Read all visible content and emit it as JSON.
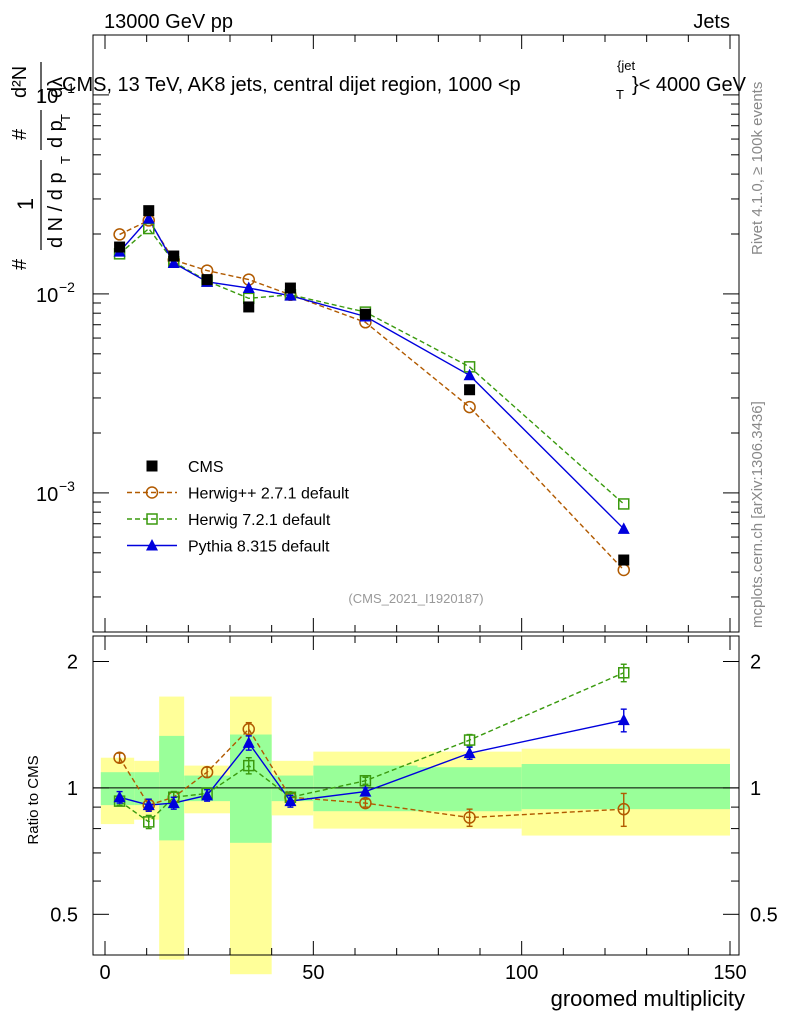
{
  "header": {
    "left": "13000 GeV pp",
    "right": "Jets"
  },
  "side_labels": {
    "rivet": "Rivet 4.1.0, ≥ 100k events",
    "mcplots": "mcplots.cern.ch [arXiv:1306.3436]"
  },
  "chart_data": [
    {
      "panel": "main",
      "type": "scatter",
      "title": "CMS, 13 TeV, AK8 jets, central dijet region, 1000 <p_T^{jet}< 4000 GeV",
      "title_text": "CMS, 13 TeV, AK8 jets, central dijet region, 1000 <p",
      "title_sup": "{jet",
      "title_sub": "T",
      "title_tail": "}< 4000 GeV",
      "ylabel_parts": {
        "num_top": "1",
        "den": "d N / d p",
        "den_sub": "T",
        "hash": "#",
        "frac2_num": "#",
        "frac2_den": "d p",
        "frac2_den_sub": "T",
        "frac3_num": "d²N",
        "frac3_den": "dλ"
      },
      "yscale": "log",
      "ylim": [
        0.0002,
        0.2
      ],
      "xlim": [
        -5,
        150
      ],
      "yticks": [
        {
          "label": "10",
          "exp": "−3",
          "value": 0.001
        },
        {
          "label": "10",
          "exp": "−2",
          "value": 0.01
        },
        {
          "label": "10",
          "exp": "−1",
          "value": 0.1
        }
      ],
      "watermark": "(CMS_2021_I1920187)",
      "legend_position": "lower-left",
      "series": [
        {
          "name": "CMS",
          "marker": "filled-square",
          "color": "#000000",
          "x": [
            3.5,
            10.5,
            16.5,
            24.5,
            34.5,
            44.5,
            62.5,
            87.5,
            124.5
          ],
          "y": [
            0.0172,
            0.0262,
            0.0155,
            0.0118,
            0.0086,
            0.0107,
            0.0079,
            0.0033,
            0.00046
          ]
        },
        {
          "name": "Herwig++ 2.7.1 default",
          "marker": "open-circle",
          "color": "#b15a00",
          "line": "dashed",
          "x": [
            3.5,
            10.5,
            16.5,
            24.5,
            34.5,
            44.5,
            62.5,
            87.5,
            124.5
          ],
          "y": [
            0.0199,
            0.0234,
            0.0148,
            0.0131,
            0.0118,
            0.0099,
            0.0072,
            0.0027,
            0.00041
          ]
        },
        {
          "name": "Herwig 7.2.1 default",
          "marker": "open-square",
          "color": "#3a9a0e",
          "line": "dashed",
          "x": [
            3.5,
            10.5,
            16.5,
            24.5,
            34.5,
            44.5,
            62.5,
            87.5,
            124.5
          ],
          "y": [
            0.0159,
            0.0213,
            0.0145,
            0.0116,
            0.0095,
            0.0099,
            0.0081,
            0.0043,
            0.00088
          ]
        },
        {
          "name": "Pythia 8.315 default",
          "marker": "filled-triangle",
          "color": "#0000dd",
          "line": "solid",
          "x": [
            3.5,
            10.5,
            16.5,
            24.5,
            34.5,
            44.5,
            62.5,
            87.5,
            124.5
          ],
          "y": [
            0.0163,
            0.0239,
            0.0143,
            0.0115,
            0.0107,
            0.0098,
            0.0077,
            0.0039,
            0.00066
          ]
        }
      ]
    },
    {
      "panel": "ratio",
      "type": "scatter",
      "ylabel": "Ratio to CMS",
      "xlabel": "groomed multiplicity",
      "ylim": [
        0.4,
        2.3
      ],
      "yscale": "log",
      "xlim": [
        -5,
        150
      ],
      "xticks": [
        "0",
        "50",
        "100",
        "150"
      ],
      "xtick_values": [
        0,
        50,
        100,
        150
      ],
      "yticks": [
        "0.5",
        "1",
        "2"
      ],
      "ytick_values": [
        0.5,
        1,
        2
      ],
      "bins": [
        {
          "lo": -1,
          "hi": 7,
          "band_outer": [
            0.82,
            1.18
          ],
          "band_inner": [
            0.91,
            1.09
          ]
        },
        {
          "lo": 7,
          "hi": 13,
          "band_outer": [
            0.84,
            1.16
          ],
          "band_inner": [
            0.91,
            1.09
          ]
        },
        {
          "lo": 13,
          "hi": 19,
          "band_outer": [
            0.39,
            1.65
          ],
          "band_inner": [
            0.75,
            1.33
          ]
        },
        {
          "lo": 19,
          "hi": 30,
          "band_outer": [
            0.87,
            1.13
          ],
          "band_inner": [
            0.93,
            1.07
          ]
        },
        {
          "lo": 30,
          "hi": 40,
          "band_outer": [
            0.36,
            1.65
          ],
          "band_inner": [
            0.74,
            1.34
          ]
        },
        {
          "lo": 40,
          "hi": 50,
          "band_outer": [
            0.86,
            1.16
          ],
          "band_inner": [
            0.93,
            1.07
          ]
        },
        {
          "lo": 50,
          "hi": 75,
          "band_outer": [
            0.8,
            1.22
          ],
          "band_inner": [
            0.88,
            1.13
          ]
        },
        {
          "lo": 75,
          "hi": 100,
          "band_outer": [
            0.8,
            1.22
          ],
          "band_inner": [
            0.88,
            1.12
          ]
        },
        {
          "lo": 100,
          "hi": 150,
          "band_outer": [
            0.77,
            1.24
          ],
          "band_inner": [
            0.89,
            1.14
          ]
        }
      ],
      "series": [
        {
          "name": "Herwig++ 2.7.1 default",
          "marker": "open-circle",
          "color": "#b15a00",
          "line": "dashed",
          "x": [
            3.5,
            10.5,
            16.5,
            24.5,
            34.5,
            44.5,
            62.5,
            87.5,
            124.5
          ],
          "y": [
            1.18,
            0.91,
            0.95,
            1.09,
            1.38,
            0.95,
            0.92,
            0.85,
            0.89
          ],
          "err": [
            0.03,
            0.03,
            0.03,
            0.03,
            0.05,
            0.02,
            0.02,
            0.04,
            0.08
          ]
        },
        {
          "name": "Herwig 7.2.1 default",
          "marker": "open-square",
          "color": "#3a9a0e",
          "line": "dashed",
          "x": [
            3.5,
            10.5,
            16.5,
            24.5,
            34.5,
            44.5,
            62.5,
            87.5,
            124.5
          ],
          "y": [
            0.93,
            0.83,
            0.95,
            0.97,
            1.13,
            0.95,
            1.04,
            1.3,
            1.88
          ],
          "err": [
            0.02,
            0.03,
            0.03,
            0.03,
            0.05,
            0.02,
            0.02,
            0.04,
            0.09
          ]
        },
        {
          "name": "Pythia 8.315 default",
          "marker": "filled-triangle",
          "color": "#0000dd",
          "line": "solid",
          "x": [
            3.5,
            10.5,
            16.5,
            24.5,
            34.5,
            44.5,
            62.5,
            87.5,
            124.5
          ],
          "y": [
            0.95,
            0.91,
            0.92,
            0.96,
            1.28,
            0.93,
            0.98,
            1.21,
            1.45
          ],
          "err": [
            0.03,
            0.03,
            0.03,
            0.03,
            0.05,
            0.03,
            0.02,
            0.04,
            0.09
          ]
        }
      ]
    }
  ]
}
